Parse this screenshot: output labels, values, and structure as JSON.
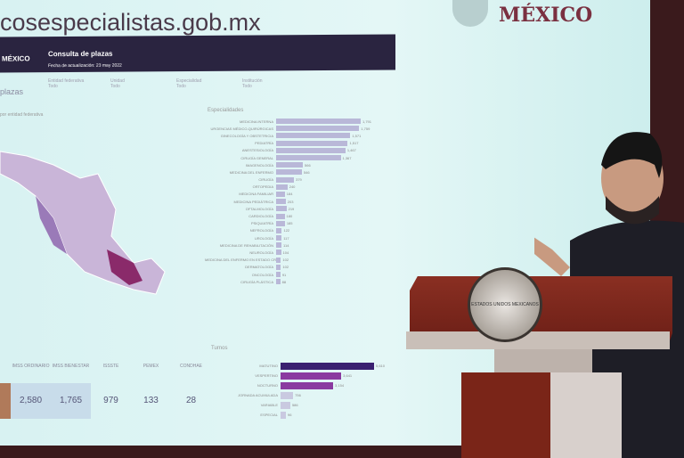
{
  "screen": {
    "url": "cosespecialistas.gob.mx",
    "logo": "MÉXICO",
    "banner": {
      "brand": "MÉXICO",
      "title": "Consulta de plazas",
      "subtitle": "Fecha de actualización: 23 may 2022"
    },
    "count_label": "plazas",
    "filters": [
      {
        "label": "Entidad federativa",
        "value": "Todo"
      },
      {
        "label": "Unidad",
        "value": "Todo"
      },
      {
        "label": "Especialidad",
        "value": "Todo"
      },
      {
        "label": "Institución",
        "value": "Todo"
      }
    ],
    "map_title": "por entidad federativa",
    "specialties_title": "Especialidades",
    "specialties": [
      {
        "label": "MEDICINA INTERNA",
        "value": "1,791"
      },
      {
        "label": "URGENCIAS MÉDICO-QUIRÚRGICAS",
        "value": "1,759"
      },
      {
        "label": "GINECOLOGÍA Y OBSTETRICIA",
        "value": "1,571"
      },
      {
        "label": "PEDIATRÍA",
        "value": "1,517"
      },
      {
        "label": "ANESTESIOLOGÍA",
        "value": "1,467"
      },
      {
        "label": "CIRUGÍA GENERAL",
        "value": "1,367"
      },
      {
        "label": "IMAGENOLOGÍA",
        "value": "566"
      },
      {
        "label": "MEDICINA DEL ENFERMO",
        "value": "546"
      },
      {
        "label": "CIRUGÍA",
        "value": "379"
      },
      {
        "label": "ORTOPEDIA",
        "value": "240"
      },
      {
        "label": "MEDICINA FAMILIAR",
        "value": "184"
      },
      {
        "label": "MEDICINA PEDIÁTRICA",
        "value": "203"
      },
      {
        "label": "OFTALMOLOGÍA",
        "value": "219"
      },
      {
        "label": "CARDIOLOGÍA",
        "value": "180"
      },
      {
        "label": "PSIQUIATRÍA",
        "value": "185"
      },
      {
        "label": "NEFROLOGÍA",
        "value": "122"
      },
      {
        "label": "UROLOGÍA",
        "value": "117"
      },
      {
        "label": "MEDICINA DE REHABILITACIÓN",
        "value": "114"
      },
      {
        "label": "NEUROLOGÍA",
        "value": "104"
      },
      {
        "label": "MEDICINA DEL ENFERMO EN ESTADO CRÍTICO",
        "value": "102"
      },
      {
        "label": "DERMATOLOGÍA",
        "value": "102"
      },
      {
        "label": "ONCOLOGÍA",
        "value": "91"
      },
      {
        "label": "CIRUGÍA PLÁSTICA",
        "value": "88"
      }
    ],
    "turno_title": "Turnos",
    "turnos": [
      {
        "label": "MATUTINO",
        "value": "5,610",
        "color": "#3a2070"
      },
      {
        "label": "VESPERTINO",
        "value": "3,641",
        "color": "#8a3aa0"
      },
      {
        "label": "NOCTURNO",
        "value": "3,154",
        "color": "#8a3aa0"
      },
      {
        "label": "JORNADA ACUMULADA",
        "value": "756",
        "color": "#c9c9e0"
      },
      {
        "label": "VARIABLE",
        "value": "586",
        "color": "#c9c9e0"
      },
      {
        "label": "ESPECIAL",
        "value": "96",
        "color": "#c9c9e0"
      }
    ],
    "institutions": [
      {
        "label": "IMSS ORDINARIO",
        "value": "2,580"
      },
      {
        "label": "IMSS BIENESTAR",
        "value": "1,765"
      },
      {
        "label": "ISSSTE",
        "value": "979"
      },
      {
        "label": "PEMEX",
        "value": "133"
      },
      {
        "label": "CONDHAE",
        "value": "28"
      }
    ]
  },
  "seal_text": "ESTADOS UNIDOS MEXICANOS"
}
